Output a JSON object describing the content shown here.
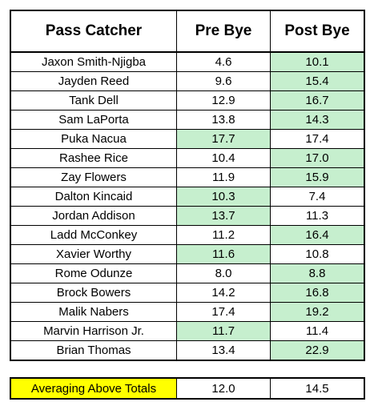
{
  "colors": {
    "highlight": "#c6efce",
    "summary_label_bg": "#ffff00",
    "border": "#000000"
  },
  "headers": [
    "Pass Catcher",
    "Pre Bye",
    "Post Bye"
  ],
  "rows": [
    {
      "name": "Jaxon Smith-Njigba",
      "pre": "4.6",
      "post": "10.1",
      "hl": "post"
    },
    {
      "name": "Jayden Reed",
      "pre": "9.6",
      "post": "15.4",
      "hl": "post"
    },
    {
      "name": "Tank Dell",
      "pre": "12.9",
      "post": "16.7",
      "hl": "post"
    },
    {
      "name": "Sam LaPorta",
      "pre": "13.8",
      "post": "14.3",
      "hl": "post"
    },
    {
      "name": "Puka Nacua",
      "pre": "17.7",
      "post": "17.4",
      "hl": "pre"
    },
    {
      "name": "Rashee Rice",
      "pre": "10.4",
      "post": "17.0",
      "hl": "post"
    },
    {
      "name": "Zay Flowers",
      "pre": "11.9",
      "post": "15.9",
      "hl": "post"
    },
    {
      "name": "Dalton Kincaid",
      "pre": "10.3",
      "post": "7.4",
      "hl": "pre"
    },
    {
      "name": "Jordan Addison",
      "pre": "13.7",
      "post": "11.3",
      "hl": "pre"
    },
    {
      "name": "Ladd McConkey",
      "pre": "11.2",
      "post": "16.4",
      "hl": "post"
    },
    {
      "name": "Xavier Worthy",
      "pre": "11.6",
      "post": "10.8",
      "hl": "pre"
    },
    {
      "name": "Rome Odunze",
      "pre": "8.0",
      "post": "8.8",
      "hl": "post"
    },
    {
      "name": "Brock Bowers",
      "pre": "14.2",
      "post": "16.8",
      "hl": "post"
    },
    {
      "name": "Malik Nabers",
      "pre": "17.4",
      "post": "19.2",
      "hl": "post"
    },
    {
      "name": "Marvin Harrison Jr.",
      "pre": "11.7",
      "post": "11.4",
      "hl": "pre"
    },
    {
      "name": "Brian Thomas",
      "pre": "13.4",
      "post": "22.9",
      "hl": "post"
    }
  ],
  "summary": {
    "label": "Averaging Above Totals",
    "pre": "12.0",
    "post": "14.5"
  }
}
